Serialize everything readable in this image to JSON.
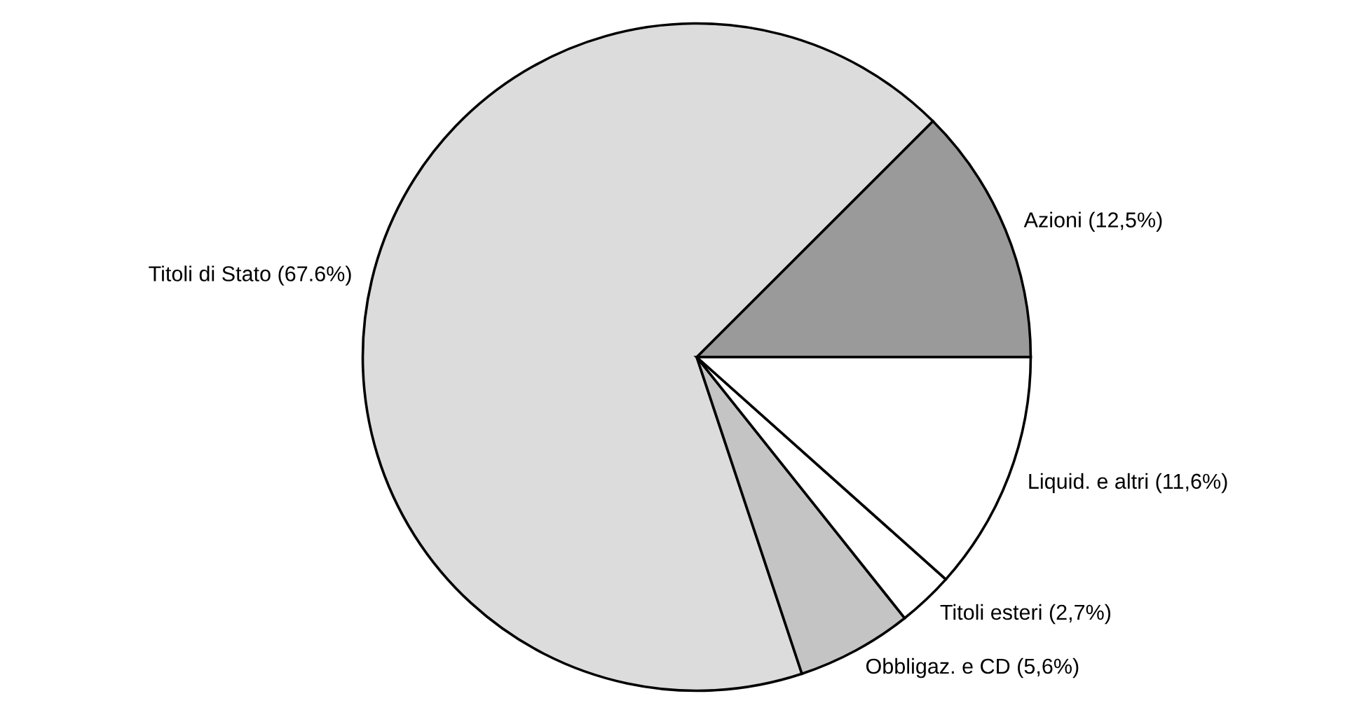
{
  "chart_data": {
    "type": "pie",
    "categories": [
      "Azioni",
      "Titoli di Stato",
      "Obbligaz. e CD",
      "Titoli esteri",
      "Liquid. e altri"
    ],
    "values": [
      12.5,
      67.6,
      5.6,
      2.7,
      11.6
    ],
    "value_labels": [
      "(12,5%)",
      "(67.6%)",
      "(5,6%)",
      "(2,7%)",
      "(11,6%)"
    ],
    "colors": [
      "#9a9a9a",
      "#dcdcdc",
      "#c4c4c4",
      "#ffffff",
      "#ffffff"
    ]
  }
}
